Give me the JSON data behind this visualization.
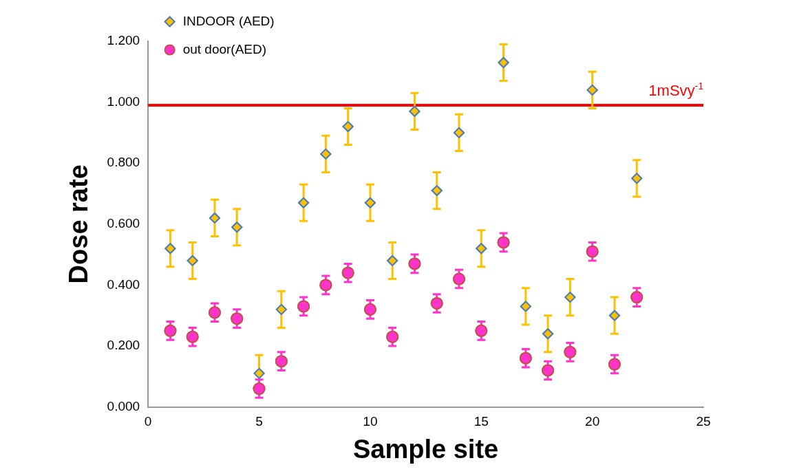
{
  "chart_data": {
    "type": "scatter",
    "xlabel": "Sample site",
    "ylabel": "Dose rate",
    "x": [
      1,
      2,
      3,
      4,
      5,
      6,
      7,
      8,
      9,
      10,
      11,
      12,
      13,
      14,
      15,
      16,
      17,
      18,
      19,
      20,
      21,
      22
    ],
    "series": [
      {
        "name": "INDOOR (AED)",
        "color": "#ffc000",
        "marker": "diamond",
        "values": [
          0.52,
          0.48,
          0.62,
          0.59,
          0.11,
          0.32,
          0.67,
          0.83,
          0.92,
          0.67,
          0.48,
          0.97,
          0.71,
          0.9,
          0.52,
          1.13,
          0.33,
          0.24,
          0.36,
          1.04,
          0.3,
          0.75
        ],
        "errors": [
          0.06,
          0.06,
          0.06,
          0.06,
          0.06,
          0.06,
          0.06,
          0.06,
          0.06,
          0.06,
          0.06,
          0.06,
          0.06,
          0.06,
          0.06,
          0.06,
          0.06,
          0.06,
          0.06,
          0.06,
          0.06,
          0.06
        ]
      },
      {
        "name": "out door(AED)",
        "color": "#ff33cc",
        "marker": "circle",
        "values": [
          0.25,
          0.23,
          0.31,
          0.29,
          0.06,
          0.15,
          0.33,
          0.4,
          0.44,
          0.32,
          0.23,
          0.47,
          0.34,
          0.42,
          0.25,
          0.54,
          0.16,
          0.12,
          0.18,
          0.51,
          0.14,
          0.36
        ],
        "errors": [
          0.03,
          0.03,
          0.03,
          0.03,
          0.03,
          0.03,
          0.03,
          0.03,
          0.03,
          0.03,
          0.03,
          0.03,
          0.03,
          0.03,
          0.03,
          0.03,
          0.03,
          0.03,
          0.03,
          0.03,
          0.03,
          0.03
        ]
      }
    ],
    "xlim": [
      0,
      25
    ],
    "xticks": [
      0,
      5,
      10,
      15,
      20,
      25
    ],
    "ylim": [
      0,
      1.2
    ],
    "yticks": [
      {
        "value": 0,
        "label": "0.000"
      },
      {
        "value": 0.2,
        "label": "0.200"
      },
      {
        "value": 0.4,
        "label": "0.400"
      },
      {
        "value": 0.6,
        "label": "0.600"
      },
      {
        "value": 0.8,
        "label": "0.800"
      },
      {
        "value": 1,
        "label": "1.000"
      },
      {
        "value": 1.2,
        "label": "1.200"
      }
    ],
    "ref_lines": [
      {
        "axis": "y",
        "value": 0.99,
        "label": "1mSvy$^{-1}$",
        "color": "#ff0000"
      }
    ],
    "grid": false,
    "legend": "top left"
  }
}
